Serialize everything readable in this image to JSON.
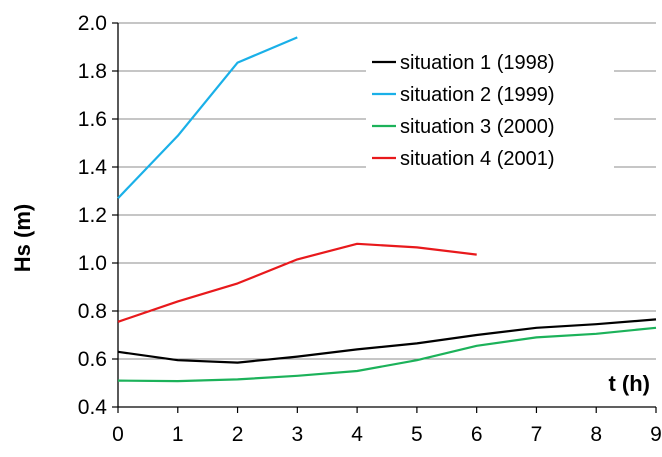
{
  "chart_data": {
    "type": "line",
    "xlabel": "t (h)",
    "ylabel": "Hs (m)",
    "xlim": [
      0,
      9
    ],
    "ylim": [
      0.4,
      2.0
    ],
    "x_ticks": [
      "0",
      "1",
      "2",
      "3",
      "4",
      "5",
      "6",
      "7",
      "8",
      "9"
    ],
    "y_ticks": [
      "0.4",
      "0.6",
      "0.8",
      "1.0",
      "1.2",
      "1.4",
      "1.6",
      "1.8",
      "2.0"
    ],
    "grid": "horizontal",
    "legend_position": "top-right",
    "series": [
      {
        "name": "situation 1 (1998)",
        "color": "#000000",
        "x": [
          0,
          1,
          2,
          3,
          4,
          5,
          6,
          7,
          8,
          9
        ],
        "values": [
          0.63,
          0.595,
          0.585,
          0.61,
          0.64,
          0.665,
          0.7,
          0.73,
          0.745,
          0.765
        ]
      },
      {
        "name": "situation 2 (1999)",
        "color": "#1ab0e8",
        "x": [
          0,
          1,
          2,
          3
        ],
        "values": [
          1.27,
          1.53,
          1.835,
          1.94
        ]
      },
      {
        "name": "situation 3 (2000)",
        "color": "#1cb25a",
        "x": [
          0,
          1,
          2,
          3,
          4,
          5,
          6,
          7,
          8,
          9
        ],
        "values": [
          0.51,
          0.508,
          0.515,
          0.53,
          0.55,
          0.595,
          0.655,
          0.69,
          0.705,
          0.73
        ]
      },
      {
        "name": "situation 4 (2001)",
        "color": "#e8191c",
        "x": [
          0,
          1,
          2,
          3,
          4,
          5,
          6
        ],
        "values": [
          0.755,
          0.84,
          0.915,
          1.015,
          1.08,
          1.065,
          1.035
        ]
      }
    ]
  }
}
